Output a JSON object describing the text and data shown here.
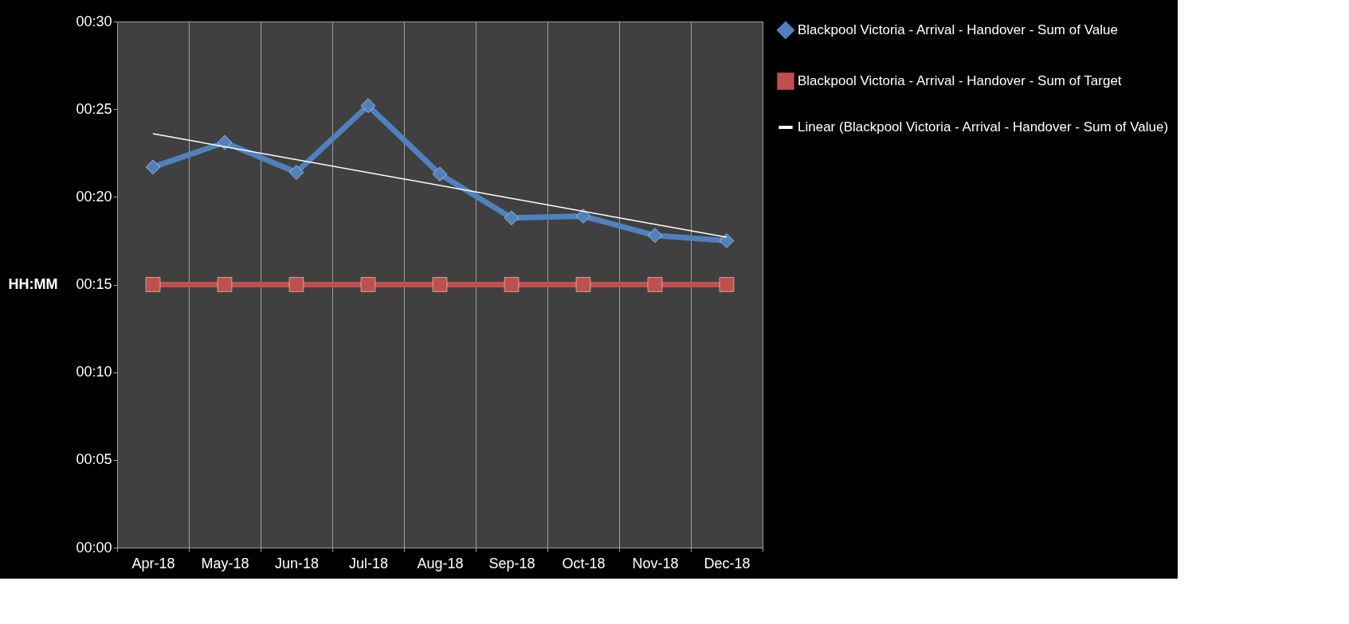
{
  "chart_data": {
    "type": "line",
    "ylabel": "HH:MM",
    "categories": [
      "Apr-18",
      "May-18",
      "Jun-18",
      "Jul-18",
      "Aug-18",
      "Sep-18",
      "Oct-18",
      "Nov-18",
      "Dec-18"
    ],
    "series": [
      {
        "name": "Blackpool Victoria - Arrival - Handover - Sum of Value",
        "color": "#4f81bd",
        "marker": "diamond",
        "values": [
          21.7,
          23.1,
          21.4,
          25.2,
          21.3,
          18.8,
          18.9,
          17.8,
          17.5
        ]
      },
      {
        "name": "Blackpool Victoria - Arrival - Handover - Sum of Target",
        "color": "#c0504d",
        "marker": "square",
        "values": [
          15,
          15,
          15,
          15,
          15,
          15,
          15,
          15,
          15
        ]
      },
      {
        "name": "Linear (Blackpool Victoria - Arrival - Handover - Sum of Value)",
        "color": "#ffffff",
        "marker": "none",
        "x": [
          "Apr-18",
          "Dec-18"
        ],
        "values": [
          23.6,
          17.7
        ]
      }
    ],
    "ylim": [
      0,
      30
    ],
    "yticks": [
      {
        "value": 0,
        "label": "00:00"
      },
      {
        "value": 5,
        "label": "00:05"
      },
      {
        "value": 10,
        "label": "00:10"
      },
      {
        "value": 15,
        "label": "00:15"
      },
      {
        "value": 20,
        "label": "00:20"
      },
      {
        "value": 25,
        "label": "00:25"
      },
      {
        "value": 30,
        "label": "00:30"
      }
    ],
    "grid": "x",
    "legend": "right"
  }
}
